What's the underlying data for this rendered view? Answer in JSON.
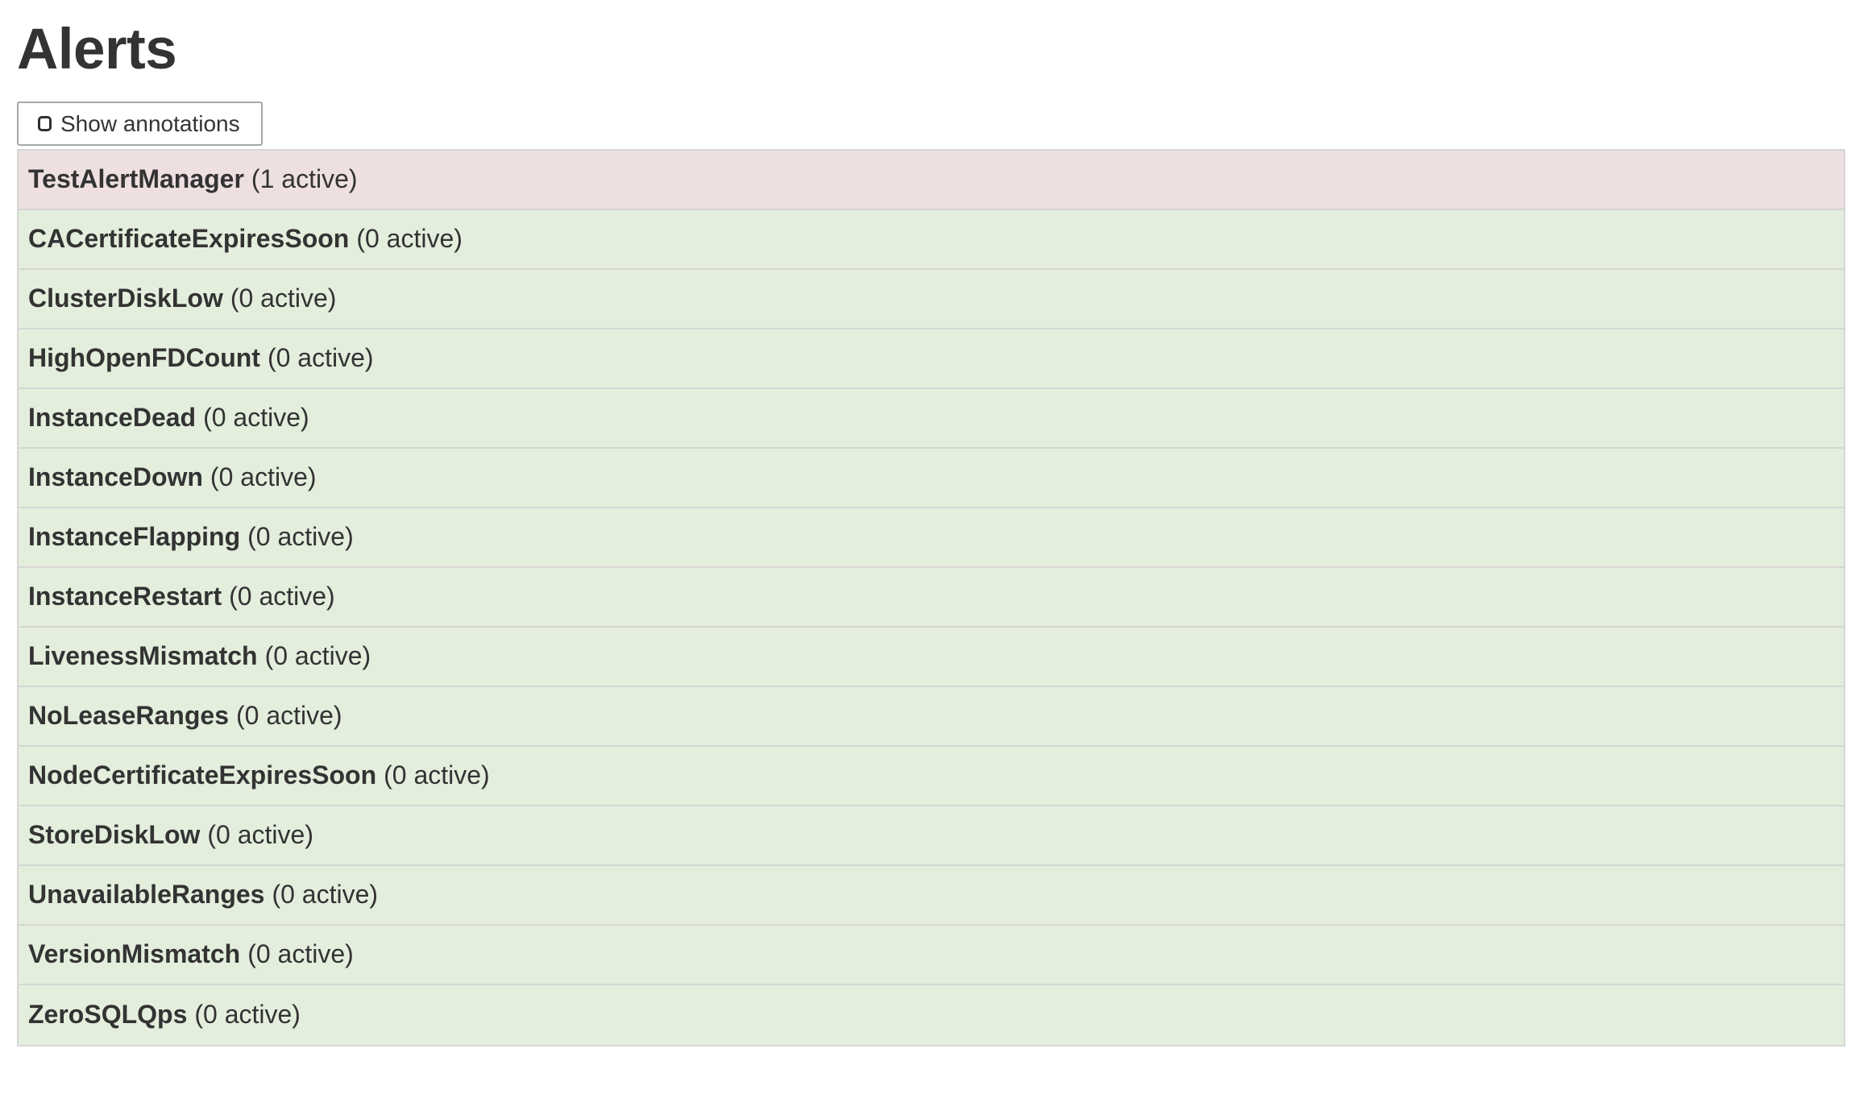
{
  "page": {
    "title": "Alerts"
  },
  "controls": {
    "show_annotations_label": "Show annotations",
    "show_annotations_checked": false
  },
  "alerts": {
    "items": [
      {
        "name": "TestAlertManager",
        "active_count": 1,
        "count_label": "(1 active)",
        "state": "firing"
      },
      {
        "name": "CACertificateExpiresSoon",
        "active_count": 0,
        "count_label": "(0 active)",
        "state": "inactive"
      },
      {
        "name": "ClusterDiskLow",
        "active_count": 0,
        "count_label": "(0 active)",
        "state": "inactive"
      },
      {
        "name": "HighOpenFDCount",
        "active_count": 0,
        "count_label": "(0 active)",
        "state": "inactive"
      },
      {
        "name": "InstanceDead",
        "active_count": 0,
        "count_label": "(0 active)",
        "state": "inactive"
      },
      {
        "name": "InstanceDown",
        "active_count": 0,
        "count_label": "(0 active)",
        "state": "inactive"
      },
      {
        "name": "InstanceFlapping",
        "active_count": 0,
        "count_label": "(0 active)",
        "state": "inactive"
      },
      {
        "name": "InstanceRestart",
        "active_count": 0,
        "count_label": "(0 active)",
        "state": "inactive"
      },
      {
        "name": "LivenessMismatch",
        "active_count": 0,
        "count_label": "(0 active)",
        "state": "inactive"
      },
      {
        "name": "NoLeaseRanges",
        "active_count": 0,
        "count_label": "(0 active)",
        "state": "inactive"
      },
      {
        "name": "NodeCertificateExpiresSoon",
        "active_count": 0,
        "count_label": "(0 active)",
        "state": "inactive"
      },
      {
        "name": "StoreDiskLow",
        "active_count": 0,
        "count_label": "(0 active)",
        "state": "inactive"
      },
      {
        "name": "UnavailableRanges",
        "active_count": 0,
        "count_label": "(0 active)",
        "state": "inactive"
      },
      {
        "name": "VersionMismatch",
        "active_count": 0,
        "count_label": "(0 active)",
        "state": "inactive"
      },
      {
        "name": "ZeroSQLQps",
        "active_count": 0,
        "count_label": "(0 active)",
        "state": "inactive"
      }
    ]
  },
  "colors": {
    "firing_bg": "#eedfe0",
    "inactive_bg": "#e3eedd",
    "list_border": "#d6d6d6",
    "text": "#333333",
    "button_border": "#a8a8a8"
  }
}
